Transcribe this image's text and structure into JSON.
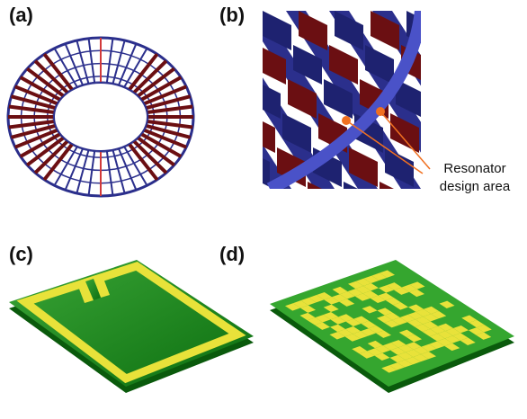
{
  "panels": {
    "a": {
      "label": "(a)"
    },
    "b": {
      "label": "(b)"
    },
    "c": {
      "label": "(c)"
    },
    "d": {
      "label": "(d)"
    }
  },
  "annotation": {
    "line1": "Resonator",
    "line2": "design area"
  },
  "colors": {
    "ring_blue": "#2b2f8c",
    "ring_red": "#6b0f12",
    "marker": "#f07020",
    "substrate": "#0f7a12",
    "substrate_top": "#2e9a2c",
    "metal": "#e8e23a"
  }
}
